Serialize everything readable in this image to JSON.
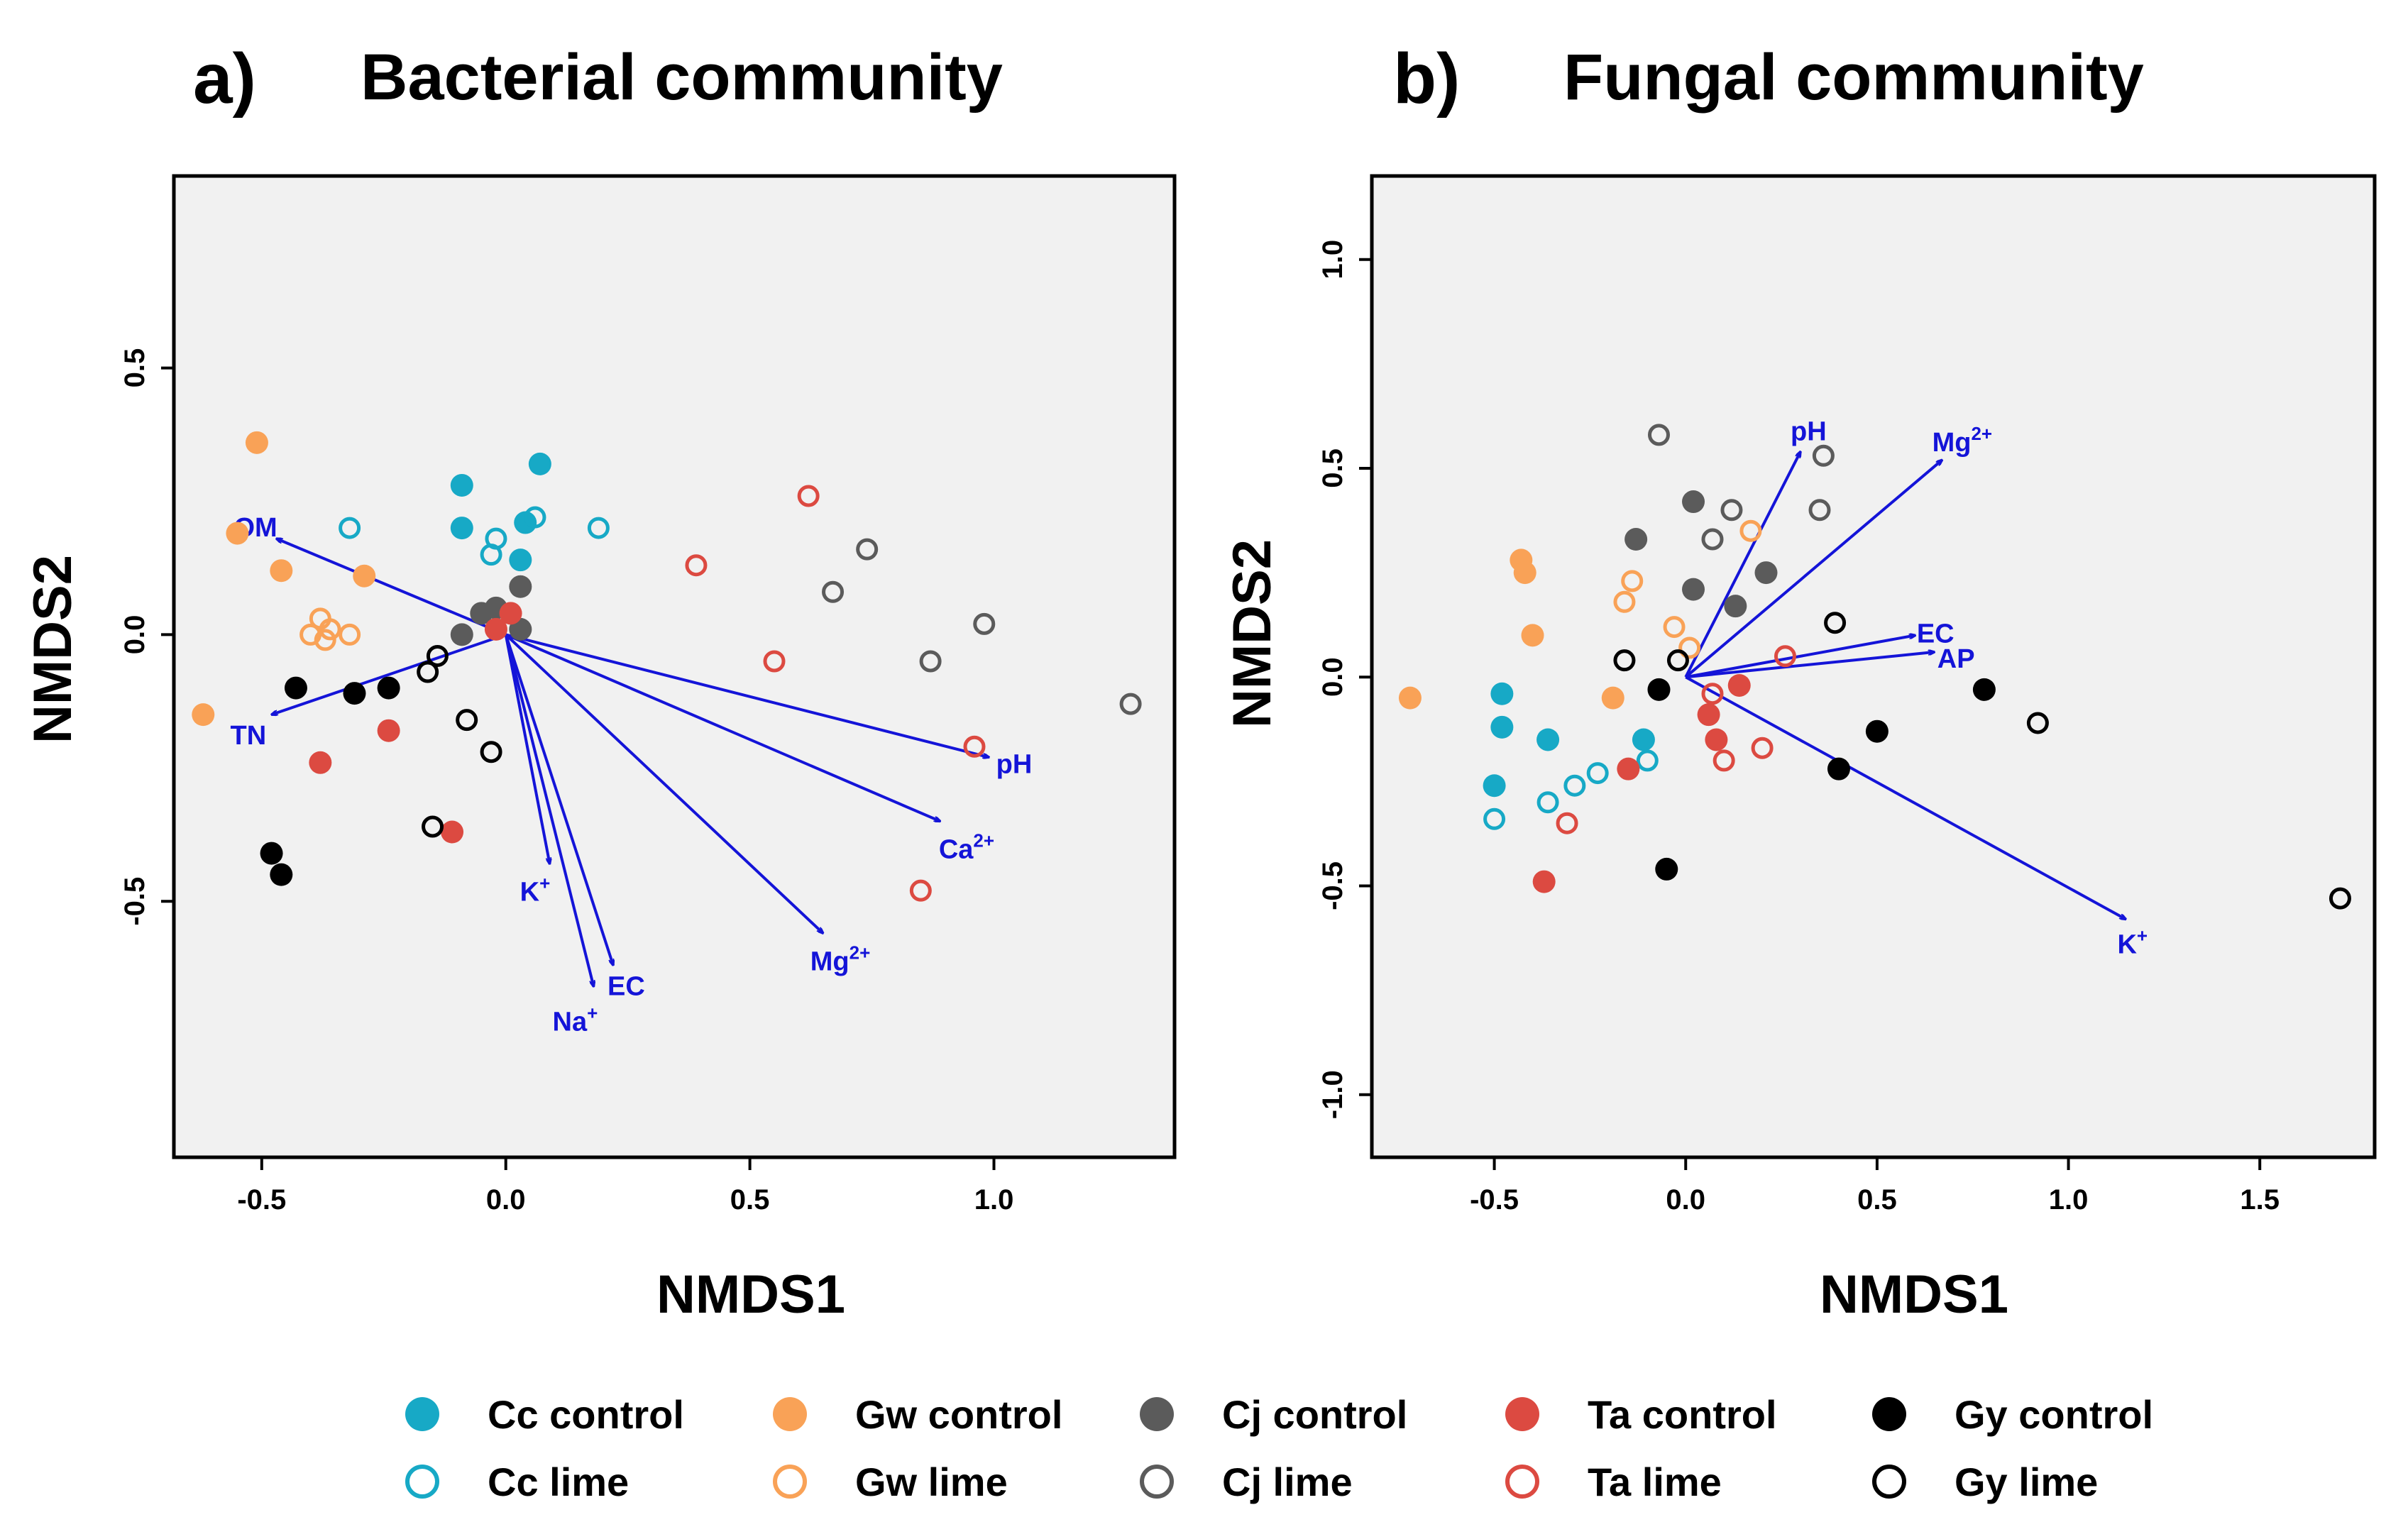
{
  "chart_data": [
    {
      "type": "scatter",
      "panel": "a)",
      "title": "Bacterial community",
      "xlabel": "NMDS1",
      "ylabel": "NMDS2",
      "xlim": [
        -0.68,
        1.37
      ],
      "ylim": [
        -0.98,
        0.86
      ],
      "xticks": [
        -0.5,
        0.0,
        0.5,
        1.0
      ],
      "xtick_labels": [
        "-0.5",
        "0.0",
        "0.5",
        "1.0"
      ],
      "yticks": [
        -0.5,
        0.0,
        0.5
      ],
      "ytick_labels": [
        "-0.5",
        "0.0",
        "0.5"
      ],
      "vectors": [
        {
          "label": "OM",
          "sup": "",
          "x": -0.47,
          "y": 0.18
        },
        {
          "label": "TN",
          "sup": "",
          "x": -0.48,
          "y": -0.15
        },
        {
          "label": "pH",
          "sup": "",
          "x": 0.99,
          "y": -0.23
        },
        {
          "label": "Ca",
          "sup": "2+",
          "x": 0.89,
          "y": -0.35
        },
        {
          "label": "Mg",
          "sup": "2+",
          "x": 0.65,
          "y": -0.56
        },
        {
          "label": "K",
          "sup": "+",
          "x": 0.09,
          "y": -0.43
        },
        {
          "label": "EC",
          "sup": "",
          "x": 0.22,
          "y": -0.62
        },
        {
          "label": "Na",
          "sup": "+",
          "x": 0.18,
          "y": -0.66
        }
      ],
      "series": [
        {
          "name": "Cc control",
          "points": [
            [
              -0.09,
              0.28
            ],
            [
              -0.09,
              0.2
            ],
            [
              0.07,
              0.32
            ],
            [
              0.04,
              0.21
            ],
            [
              0.03,
              0.14
            ]
          ]
        },
        {
          "name": "Cc lime",
          "points": [
            [
              -0.32,
              0.2
            ],
            [
              -0.02,
              0.18
            ],
            [
              -0.03,
              0.15
            ],
            [
              0.06,
              0.22
            ],
            [
              0.19,
              0.2
            ]
          ]
        },
        {
          "name": "Gw control",
          "points": [
            [
              -0.51,
              0.36
            ],
            [
              -0.55,
              0.19
            ],
            [
              -0.46,
              0.12
            ],
            [
              -0.29,
              0.11
            ],
            [
              -0.62,
              -0.15
            ]
          ]
        },
        {
          "name": "Gw lime",
          "points": [
            [
              -0.38,
              0.03
            ],
            [
              -0.36,
              0.01
            ],
            [
              -0.32,
              0.0
            ],
            [
              -0.4,
              0.0
            ],
            [
              -0.37,
              -0.01
            ]
          ]
        },
        {
          "name": "Cj control",
          "points": [
            [
              -0.05,
              0.04
            ],
            [
              -0.02,
              0.05
            ],
            [
              0.03,
              0.09
            ],
            [
              0.03,
              0.01
            ],
            [
              -0.09,
              0.0
            ]
          ]
        },
        {
          "name": "Cj lime",
          "points": [
            [
              0.67,
              0.08
            ],
            [
              0.74,
              0.16
            ],
            [
              0.87,
              -0.05
            ],
            [
              0.98,
              0.02
            ],
            [
              1.28,
              -0.13
            ]
          ]
        },
        {
          "name": "Ta control",
          "points": [
            [
              0.01,
              0.04
            ],
            [
              -0.02,
              0.01
            ],
            [
              -0.24,
              -0.18
            ],
            [
              -0.38,
              -0.24
            ],
            [
              -0.11,
              -0.37
            ]
          ]
        },
        {
          "name": "Ta lime",
          "points": [
            [
              0.39,
              0.13
            ],
            [
              0.62,
              0.26
            ],
            [
              0.55,
              -0.05
            ],
            [
              0.96,
              -0.21
            ],
            [
              0.85,
              -0.48
            ]
          ]
        },
        {
          "name": "Gy control",
          "points": [
            [
              -0.43,
              -0.1
            ],
            [
              -0.31,
              -0.11
            ],
            [
              -0.24,
              -0.1
            ],
            [
              -0.48,
              -0.41
            ],
            [
              -0.46,
              -0.45
            ]
          ]
        },
        {
          "name": "Gy lime",
          "points": [
            [
              -0.14,
              -0.04
            ],
            [
              -0.16,
              -0.07
            ],
            [
              -0.08,
              -0.16
            ],
            [
              -0.03,
              -0.22
            ],
            [
              -0.15,
              -0.36
            ]
          ]
        }
      ]
    },
    {
      "type": "scatter",
      "panel": "b)",
      "title": "Fungal community",
      "xlabel": "NMDS1",
      "ylabel": "NMDS2",
      "xlim": [
        -0.82,
        1.8
      ],
      "ylim": [
        -1.15,
        1.2
      ],
      "xticks": [
        -0.5,
        0.0,
        0.5,
        1.0,
        1.5
      ],
      "xtick_labels": [
        "-0.5",
        "0.0",
        "0.5",
        "1.0",
        "1.5"
      ],
      "yticks": [
        -1.0,
        -0.5,
        0.0,
        0.5,
        1.0
      ],
      "ytick_labels": [
        "-1.0",
        "-0.5",
        "0.0",
        "0.5",
        "1.0"
      ],
      "vectors": [
        {
          "label": "pH",
          "sup": "",
          "x": 0.3,
          "y": 0.54
        },
        {
          "label": "Mg",
          "sup": "2+",
          "x": 0.67,
          "y": 0.52
        },
        {
          "label": "EC",
          "sup": "",
          "x": 0.6,
          "y": 0.1
        },
        {
          "label": "AP",
          "sup": "",
          "x": 0.65,
          "y": 0.06
        },
        {
          "label": "K",
          "sup": "+",
          "x": 1.15,
          "y": -0.58
        }
      ],
      "series": [
        {
          "name": "Cc control",
          "points": [
            [
              -0.48,
              -0.04
            ],
            [
              -0.48,
              -0.12
            ],
            [
              -0.36,
              -0.15
            ],
            [
              -0.5,
              -0.26
            ],
            [
              -0.11,
              -0.15
            ]
          ]
        },
        {
          "name": "Cc lime",
          "points": [
            [
              -0.5,
              -0.34
            ],
            [
              -0.36,
              -0.3
            ],
            [
              -0.29,
              -0.26
            ],
            [
              -0.23,
              -0.23
            ],
            [
              -0.1,
              -0.2
            ]
          ]
        },
        {
          "name": "Gw control",
          "points": [
            [
              -0.43,
              0.28
            ],
            [
              -0.42,
              0.25
            ],
            [
              -0.4,
              0.1
            ],
            [
              -0.72,
              -0.05
            ],
            [
              -0.19,
              -0.05
            ]
          ]
        },
        {
          "name": "Gw lime",
          "points": [
            [
              -0.16,
              0.18
            ],
            [
              -0.14,
              0.23
            ],
            [
              -0.03,
              0.12
            ],
            [
              0.01,
              0.07
            ],
            [
              0.17,
              0.35
            ]
          ]
        },
        {
          "name": "Cj control",
          "points": [
            [
              -0.13,
              0.33
            ],
            [
              0.02,
              0.42
            ],
            [
              0.02,
              0.21
            ],
            [
              0.13,
              0.17
            ],
            [
              0.21,
              0.25
            ]
          ]
        },
        {
          "name": "Cj lime",
          "points": [
            [
              -0.07,
              0.58
            ],
            [
              0.12,
              0.4
            ],
            [
              0.07,
              0.33
            ],
            [
              0.36,
              0.53
            ],
            [
              0.35,
              0.4
            ]
          ]
        },
        {
          "name": "Ta control",
          "points": [
            [
              0.14,
              -0.02
            ],
            [
              0.06,
              -0.09
            ],
            [
              0.08,
              -0.15
            ],
            [
              -0.15,
              -0.22
            ],
            [
              -0.37,
              -0.49
            ]
          ]
        },
        {
          "name": "Ta lime",
          "points": [
            [
              0.26,
              0.05
            ],
            [
              0.07,
              -0.04
            ],
            [
              0.1,
              -0.2
            ],
            [
              0.2,
              -0.17
            ],
            [
              -0.31,
              -0.35
            ]
          ]
        },
        {
          "name": "Gy control",
          "points": [
            [
              -0.07,
              -0.03
            ],
            [
              0.78,
              -0.03
            ],
            [
              0.5,
              -0.13
            ],
            [
              0.4,
              -0.22
            ],
            [
              -0.05,
              -0.46
            ]
          ]
        },
        {
          "name": "Gy lime",
          "points": [
            [
              -0.16,
              0.04
            ],
            [
              -0.02,
              0.04
            ],
            [
              0.39,
              0.13
            ],
            [
              0.92,
              -0.11
            ],
            [
              1.71,
              -0.53
            ]
          ]
        }
      ]
    }
  ],
  "legend": [
    {
      "label": "Cc control",
      "color": "#17a9c6",
      "filled": true
    },
    {
      "label": "Gw control",
      "color": "#f9a257",
      "filled": true
    },
    {
      "label": "Cj control",
      "color": "#5b5b5b",
      "filled": true
    },
    {
      "label": "Ta control",
      "color": "#dc4a41",
      "filled": true
    },
    {
      "label": "Gy control",
      "color": "#000000",
      "filled": true
    },
    {
      "label": "Cc lime",
      "color": "#17a9c6",
      "filled": false
    },
    {
      "label": "Gw lime",
      "color": "#f9a257",
      "filled": false
    },
    {
      "label": "Cj lime",
      "color": "#5b5b5b",
      "filled": false
    },
    {
      "label": "Ta lime",
      "color": "#dc4a41",
      "filled": false
    },
    {
      "label": "Gy lime",
      "color": "#000000",
      "filled": false
    }
  ],
  "colors": {
    "Cc": "#17a9c6",
    "Gw": "#f9a257",
    "Cj": "#5b5b5b",
    "Ta": "#dc4a41",
    "Gy": "#000000",
    "vector": "#1414d8",
    "plot_background": "#f1f1f1"
  }
}
